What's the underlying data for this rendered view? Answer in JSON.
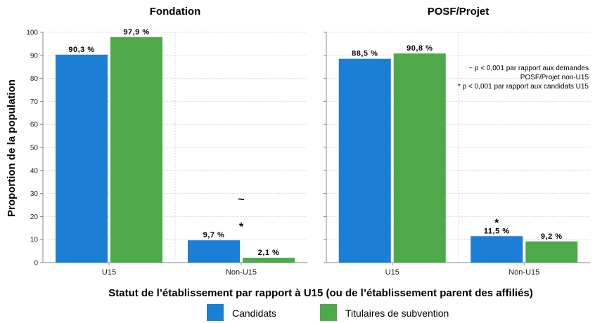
{
  "chart_data": {
    "type": "bar",
    "ylabel": "Proportion de la population",
    "xlabel": "Statut de l’établissement par rapport à U15 (ou de l’établissement parent des affiliés)",
    "ylim": [
      0,
      100
    ],
    "yticks": [
      0,
      10,
      20,
      30,
      40,
      50,
      60,
      70,
      80,
      90,
      100
    ],
    "grid": true,
    "legend_position": "bottom",
    "colors": {
      "Candidats": "#1c7fd6",
      "Titulaires de subvention": "#4fa84a"
    },
    "panels": [
      {
        "title": "Fondation",
        "categories": [
          "U15",
          "Non-U15"
        ],
        "series": [
          {
            "name": "Candidats",
            "values": [
              90.3,
              9.7
            ],
            "labels": [
              "90,3 %",
              "9,7 %"
            ]
          },
          {
            "name": "Titulaires de subvention",
            "values": [
              97.9,
              2.1
            ],
            "labels": [
              "97,9 %",
              "2,1 %"
            ]
          }
        ],
        "markers": [
          {
            "category": "Non-U15",
            "symbols": [
              "~",
              "*"
            ]
          }
        ]
      },
      {
        "title": "POSF/Projet",
        "categories": [
          "U15",
          "Non-U15"
        ],
        "series": [
          {
            "name": "Candidats",
            "values": [
              88.5,
              11.5
            ],
            "labels": [
              "88,5 %",
              "11,5 %"
            ]
          },
          {
            "name": "Titulaires de subvention",
            "values": [
              90.8,
              9.2
            ],
            "labels": [
              "90,8 %",
              "9,2 %"
            ]
          }
        ],
        "markers": [
          {
            "category": "Non-U15",
            "symbols": [
              "*"
            ]
          }
        ],
        "notes": [
          "~ p < 0,001 par rapport aux demandes",
          "POSF/Projet non-U15",
          "* p < 0,001 par rapport aux candidats U15"
        ]
      }
    ]
  }
}
